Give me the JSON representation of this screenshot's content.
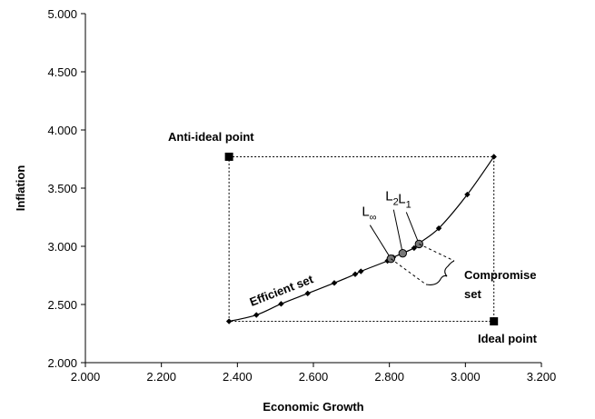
{
  "chart_data": {
    "type": "line",
    "xlabel": "Economic Growth",
    "ylabel": "Inflation",
    "xlim": [
      2.0,
      3.2
    ],
    "ylim": [
      2.0,
      5.0
    ],
    "x_ticks": [
      "2.000",
      "2.200",
      "2.400",
      "2.600",
      "2.800",
      "3.000",
      "3.200"
    ],
    "y_ticks": [
      "2.000",
      "2.500",
      "3.000",
      "3.500",
      "4.000",
      "4.500",
      "5.000"
    ],
    "series": [
      {
        "x": [
          2.378,
          2.45,
          2.515,
          2.585,
          2.655,
          2.71,
          2.725,
          2.795,
          2.81,
          2.865,
          2.875,
          2.93,
          3.005,
          3.075
        ],
        "y": [
          2.355,
          2.41,
          2.505,
          2.595,
          2.685,
          2.76,
          2.785,
          2.875,
          2.905,
          2.985,
          3.02,
          3.155,
          3.445,
          3.77
        ]
      }
    ],
    "highlighted_points": [
      {
        "label": "L",
        "sub": "1",
        "x": 2.878,
        "y": 3.02
      },
      {
        "label": "L",
        "sub": "2",
        "x": 2.835,
        "y": 2.94
      },
      {
        "label": "L",
        "sub": "∞",
        "x": 2.804,
        "y": 2.893
      }
    ],
    "anti_ideal_point": {
      "label": "Anti-ideal point",
      "x": 2.378,
      "y": 3.77
    },
    "ideal_point": {
      "label": "Ideal point",
      "x": 3.075,
      "y": 2.355
    },
    "annotations": {
      "efficient_set": "Efficient set",
      "compromise_line1": "Compromise",
      "compromise_line2": "set"
    },
    "grid": false,
    "legend": "none"
  }
}
